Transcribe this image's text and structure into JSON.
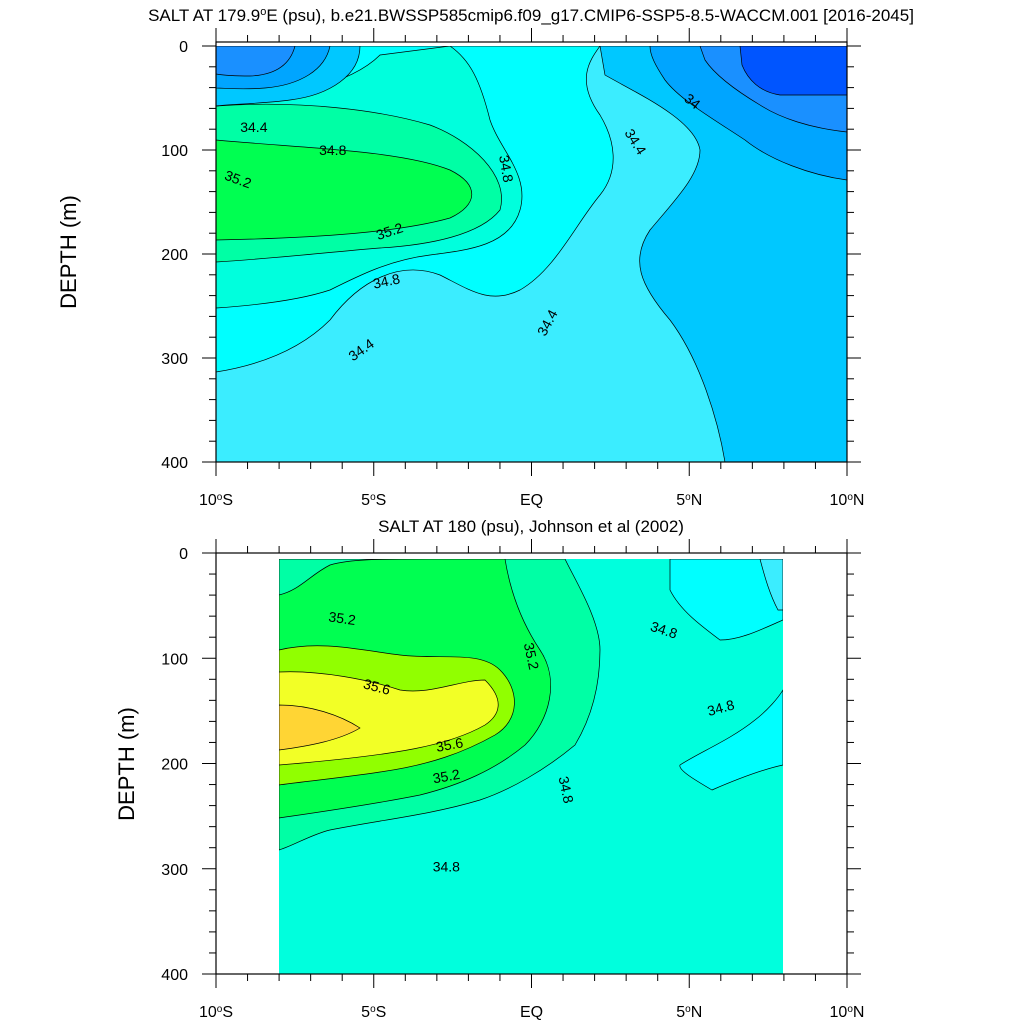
{
  "colors": {
    "34.0": "#1a90ff",
    "34.2": "#00a5ff",
    "34.4": "#00c8ff",
    "34.6": "#3bedff",
    "34.7": "#00ffff",
    "34.8": "#00ffdd",
    "35.0": "#00ffa5",
    "35.2": "#00ff51",
    "35.4": "#91ff00",
    "35.6": "#f2ff26",
    "35.8": "#ffd534",
    "deep": "#0055ff"
  },
  "chart_data": [
    {
      "type": "contour",
      "title_prefix": "SALT AT 179.9",
      "title_sup": "o",
      "title_suffix": "E (psu), b.e21.BWSSP585cmip6.f09_g17.CMIP6-SSP5-8.5-WACCM.001 [2016-2045]",
      "ylabel": "DEPTH (m)",
      "xlim": [
        -10,
        10
      ],
      "ylim": [
        0,
        400
      ],
      "yticks": [
        0,
        100,
        200,
        300,
        400
      ],
      "xticks": [
        {
          "value": -10,
          "pre": "10",
          "sup": "o",
          "post": "S"
        },
        {
          "value": -5,
          "pre": "5",
          "sup": "o",
          "post": "S"
        },
        {
          "value": 0,
          "pre": "EQ",
          "sup": "",
          "post": ""
        },
        {
          "value": 5,
          "pre": "5",
          "sup": "o",
          "post": "N"
        },
        {
          "value": 10,
          "pre": "10",
          "sup": "o",
          "post": "N"
        }
      ],
      "contour_labels": [
        {
          "text": "34.4",
          "x": -8.8,
          "y": 78,
          "angle": 0
        },
        {
          "text": "34.8",
          "x": -6.3,
          "y": 100,
          "angle": 0
        },
        {
          "text": "35.2",
          "x": -9.3,
          "y": 128,
          "angle": 20
        },
        {
          "text": "35.2",
          "x": -4.5,
          "y": 178,
          "angle": -18
        },
        {
          "text": "34.8",
          "x": -4.6,
          "y": 226,
          "angle": -12
        },
        {
          "text": "34.4",
          "x": -5.4,
          "y": 292,
          "angle": -35
        },
        {
          "text": "34.8",
          "x": -0.8,
          "y": 118,
          "angle": 80
        },
        {
          "text": "34.4",
          "x": 0.5,
          "y": 266,
          "angle": -62
        },
        {
          "text": "34.4",
          "x": 3.3,
          "y": 92,
          "angle": 58
        },
        {
          "text": "34",
          "x": 5.1,
          "y": 53,
          "angle": 38
        }
      ]
    },
    {
      "type": "contour",
      "title_prefix": "SALT AT 180 (psu), Johnson et al (2002)",
      "title_sup": "",
      "title_suffix": "",
      "ylabel": "DEPTH (m)",
      "xlim": [
        -10,
        10
      ],
      "ylim": [
        0,
        400
      ],
      "data_xrange": [
        -8,
        8
      ],
      "data_yrange": [
        5,
        400
      ],
      "yticks": [
        0,
        100,
        200,
        300,
        400
      ],
      "xticks": [
        {
          "value": -10,
          "pre": "10",
          "sup": "o",
          "post": "S"
        },
        {
          "value": -5,
          "pre": "5",
          "sup": "o",
          "post": "S"
        },
        {
          "value": 0,
          "pre": "EQ",
          "sup": "",
          "post": ""
        },
        {
          "value": 5,
          "pre": "5",
          "sup": "o",
          "post": "N"
        },
        {
          "value": 10,
          "pre": "10",
          "sup": "o",
          "post": "N"
        }
      ],
      "contour_labels": [
        {
          "text": "35.2",
          "x": -6.0,
          "y": 62,
          "angle": 8
        },
        {
          "text": "35.6",
          "x": -4.9,
          "y": 127,
          "angle": 15
        },
        {
          "text": "35.6",
          "x": -2.6,
          "y": 182,
          "angle": -10
        },
        {
          "text": "35.2",
          "x": -2.7,
          "y": 212,
          "angle": -10
        },
        {
          "text": "35.2",
          "x": 0.0,
          "y": 98,
          "angle": 78
        },
        {
          "text": "34.8",
          "x": 1.1,
          "y": 225,
          "angle": 78
        },
        {
          "text": "34.8",
          "x": -2.7,
          "y": 298,
          "angle": 0
        },
        {
          "text": "34.8",
          "x": 4.2,
          "y": 73,
          "angle": 18
        },
        {
          "text": "34.8",
          "x": 6.0,
          "y": 147,
          "angle": -15
        }
      ]
    }
  ]
}
